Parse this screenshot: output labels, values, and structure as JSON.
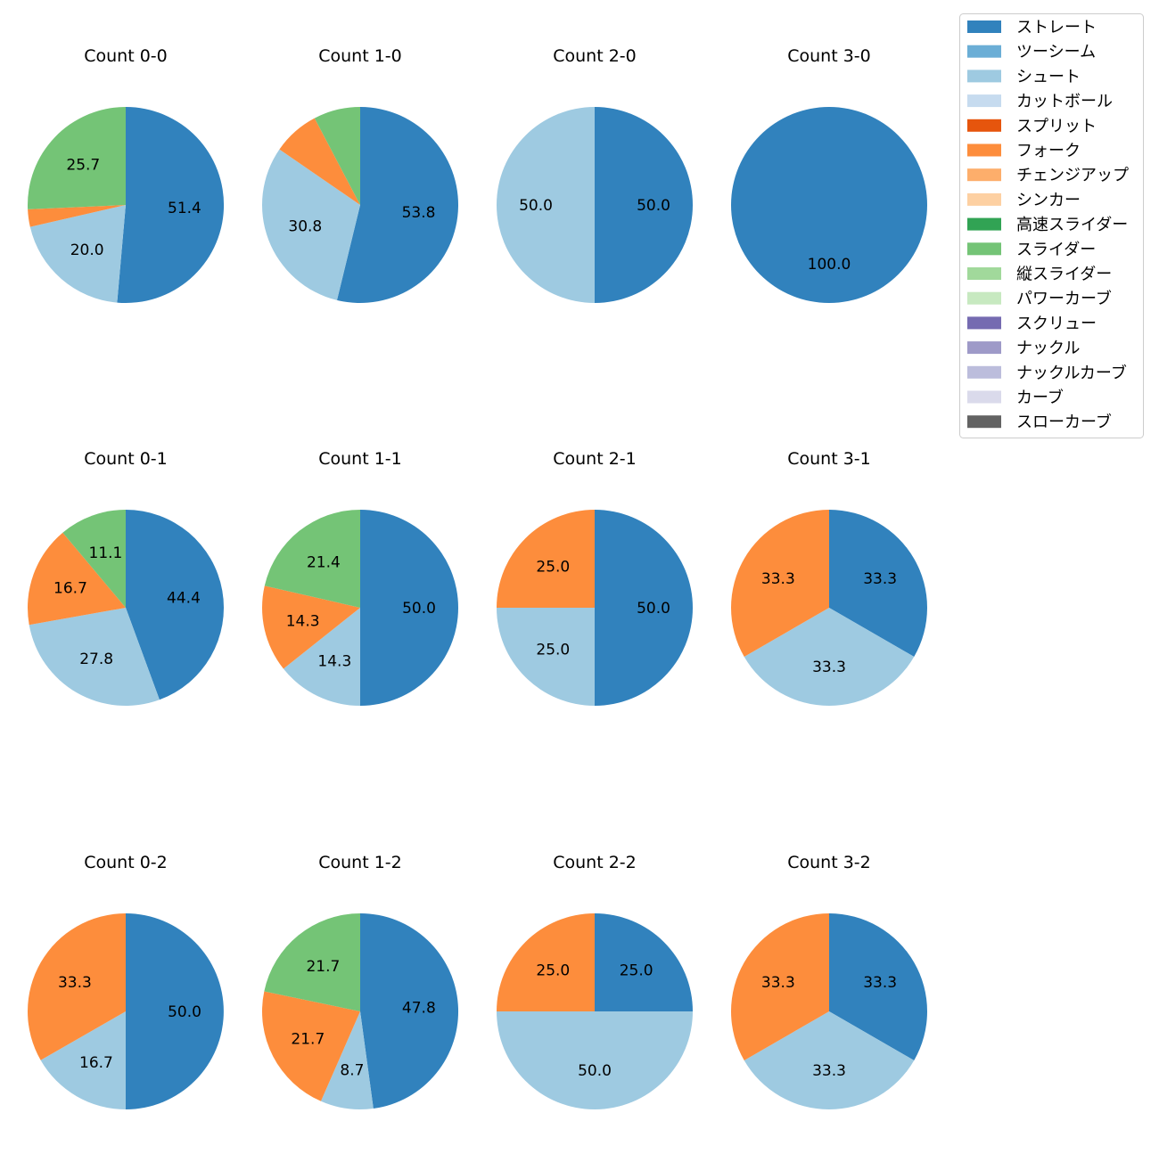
{
  "legend": {
    "placement": "top-right",
    "items": [
      {
        "label": "ストレート",
        "color": "#3182bd"
      },
      {
        "label": "ツーシーム",
        "color": "#6baed6"
      },
      {
        "label": "シュート",
        "color": "#9ecae1"
      },
      {
        "label": "カットボール",
        "color": "#c6dbef"
      },
      {
        "label": "スプリット",
        "color": "#e6550d"
      },
      {
        "label": "フォーク",
        "color": "#fd8d3c"
      },
      {
        "label": "チェンジアップ",
        "color": "#fdae6b"
      },
      {
        "label": "シンカー",
        "color": "#fdd0a2"
      },
      {
        "label": "高速スライダー",
        "color": "#31a354"
      },
      {
        "label": "スライダー",
        "color": "#74c476"
      },
      {
        "label": "縦スライダー",
        "color": "#a1d99b"
      },
      {
        "label": "パワーカーブ",
        "color": "#c7e9c0"
      },
      {
        "label": "スクリュー",
        "color": "#756bb1"
      },
      {
        "label": "ナックル",
        "color": "#9e9ac8"
      },
      {
        "label": "ナックルカーブ",
        "color": "#bcbddc"
      },
      {
        "label": "カーブ",
        "color": "#dadaeb"
      },
      {
        "label": "スローカーブ",
        "color": "#636363"
      }
    ]
  },
  "chart_data": [
    {
      "type": "pie",
      "title": "Count 0-0",
      "slices": [
        {
          "label": "ストレート",
          "value": 51.4,
          "text": "51.4"
        },
        {
          "label": "シュート",
          "value": 20.0,
          "text": "20.0"
        },
        {
          "label": "フォーク",
          "value": 2.9,
          "text": ""
        },
        {
          "label": "スライダー",
          "value": 25.7,
          "text": "25.7"
        }
      ]
    },
    {
      "type": "pie",
      "title": "Count 1-0",
      "slices": [
        {
          "label": "ストレート",
          "value": 53.8,
          "text": "53.8"
        },
        {
          "label": "シュート",
          "value": 30.8,
          "text": "30.8"
        },
        {
          "label": "フォーク",
          "value": 7.7,
          "text": ""
        },
        {
          "label": "スライダー",
          "value": 7.7,
          "text": ""
        }
      ]
    },
    {
      "type": "pie",
      "title": "Count 2-0",
      "slices": [
        {
          "label": "ストレート",
          "value": 50.0,
          "text": "50.0"
        },
        {
          "label": "シュート",
          "value": 50.0,
          "text": "50.0"
        }
      ]
    },
    {
      "type": "pie",
      "title": "Count 3-0",
      "slices": [
        {
          "label": "ストレート",
          "value": 100.0,
          "text": "100.0"
        }
      ]
    },
    {
      "type": "pie",
      "title": "Count 0-1",
      "slices": [
        {
          "label": "ストレート",
          "value": 44.4,
          "text": "44.4"
        },
        {
          "label": "シュート",
          "value": 27.8,
          "text": "27.8"
        },
        {
          "label": "フォーク",
          "value": 16.7,
          "text": "16.7"
        },
        {
          "label": "スライダー",
          "value": 11.1,
          "text": "11.1"
        }
      ]
    },
    {
      "type": "pie",
      "title": "Count 1-1",
      "slices": [
        {
          "label": "ストレート",
          "value": 50.0,
          "text": "50.0"
        },
        {
          "label": "シュート",
          "value": 14.3,
          "text": "14.3"
        },
        {
          "label": "フォーク",
          "value": 14.3,
          "text": "14.3"
        },
        {
          "label": "スライダー",
          "value": 21.4,
          "text": "21.4"
        }
      ]
    },
    {
      "type": "pie",
      "title": "Count 2-1",
      "slices": [
        {
          "label": "ストレート",
          "value": 50.0,
          "text": "50.0"
        },
        {
          "label": "シュート",
          "value": 25.0,
          "text": "25.0"
        },
        {
          "label": "フォーク",
          "value": 25.0,
          "text": "25.0"
        }
      ]
    },
    {
      "type": "pie",
      "title": "Count 3-1",
      "slices": [
        {
          "label": "ストレート",
          "value": 33.3,
          "text": "33.3"
        },
        {
          "label": "シュート",
          "value": 33.3,
          "text": "33.3"
        },
        {
          "label": "フォーク",
          "value": 33.3,
          "text": "33.3"
        }
      ]
    },
    {
      "type": "pie",
      "title": "Count 0-2",
      "slices": [
        {
          "label": "ストレート",
          "value": 50.0,
          "text": "50.0"
        },
        {
          "label": "シュート",
          "value": 16.7,
          "text": "16.7"
        },
        {
          "label": "フォーク",
          "value": 33.3,
          "text": "33.3"
        }
      ]
    },
    {
      "type": "pie",
      "title": "Count 1-2",
      "slices": [
        {
          "label": "ストレート",
          "value": 47.8,
          "text": "47.8"
        },
        {
          "label": "シュート",
          "value": 8.7,
          "text": "8.7"
        },
        {
          "label": "フォーク",
          "value": 21.7,
          "text": "21.7"
        },
        {
          "label": "スライダー",
          "value": 21.7,
          "text": "21.7"
        }
      ]
    },
    {
      "type": "pie",
      "title": "Count 2-2",
      "slices": [
        {
          "label": "ストレート",
          "value": 25.0,
          "text": "25.0"
        },
        {
          "label": "シュート",
          "value": 50.0,
          "text": "50.0"
        },
        {
          "label": "フォーク",
          "value": 25.0,
          "text": "25.0"
        }
      ]
    },
    {
      "type": "pie",
      "title": "Count 3-2",
      "slices": [
        {
          "label": "ストレート",
          "value": 33.3,
          "text": "33.3"
        },
        {
          "label": "シュート",
          "value": 33.3,
          "text": "33.3"
        },
        {
          "label": "フォーク",
          "value": 33.3,
          "text": "33.3"
        }
      ]
    }
  ]
}
